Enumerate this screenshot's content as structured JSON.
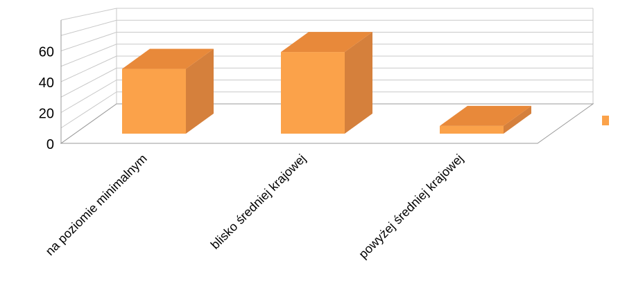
{
  "chart_data": {
    "type": "bar",
    "style": "3d-column",
    "categories": [
      "na poziomie minimalnym",
      "blisko średniej krajowej",
      "powyżej średniej krajowej"
    ],
    "series": [
      {
        "values": [
          42,
          53,
          5
        ]
      }
    ],
    "yticks": [
      "0",
      "20",
      "40",
      "60"
    ],
    "ylim": [
      0,
      80
    ],
    "grid": true,
    "legend": "right",
    "colors": {
      "bar_front": "#FBA24A",
      "bar_top": "#E8893A",
      "bar_side": "#D5803C",
      "grid": "#C8C8C8",
      "axis": "#9A9A9A"
    }
  }
}
